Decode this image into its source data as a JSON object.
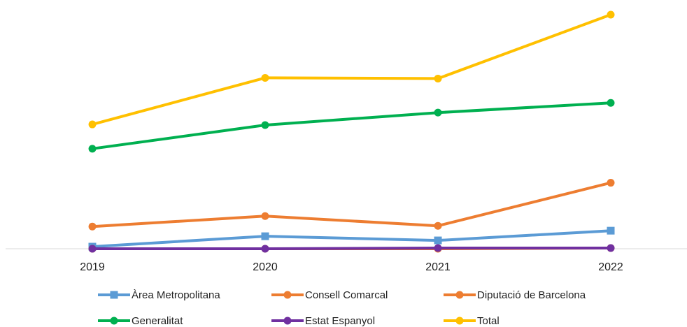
{
  "chart_data": {
    "type": "line",
    "categories": [
      "2019",
      "2020",
      "2021",
      "2022"
    ],
    "ylim": [
      0,
      340
    ],
    "grid": false,
    "legend_position": "bottom",
    "series": [
      {
        "name": "Àrea Metropolitana",
        "values": [
          3,
          18,
          12,
          26
        ],
        "color": "#5B9BD5",
        "marker": "square"
      },
      {
        "name": "Consell Comarcal",
        "values": [
          32,
          47,
          33,
          95
        ],
        "color": "#ED7D31",
        "marker": "circle"
      },
      {
        "name": "Diputació de Barcelona",
        "values": [
          0,
          0,
          0,
          1
        ],
        "color": "#ED7D31",
        "marker": "circle"
      },
      {
        "name": "Generalitat",
        "values": [
          144,
          178,
          196,
          210
        ],
        "color": "#00B050",
        "marker": "circle"
      },
      {
        "name": "Estat Espanyol",
        "values": [
          0,
          0,
          1,
          1
        ],
        "color": "#7030A0",
        "marker": "circle"
      },
      {
        "name": "Total",
        "values": [
          179,
          246,
          245,
          337
        ],
        "color": "#FFC000",
        "marker": "circle"
      }
    ]
  }
}
